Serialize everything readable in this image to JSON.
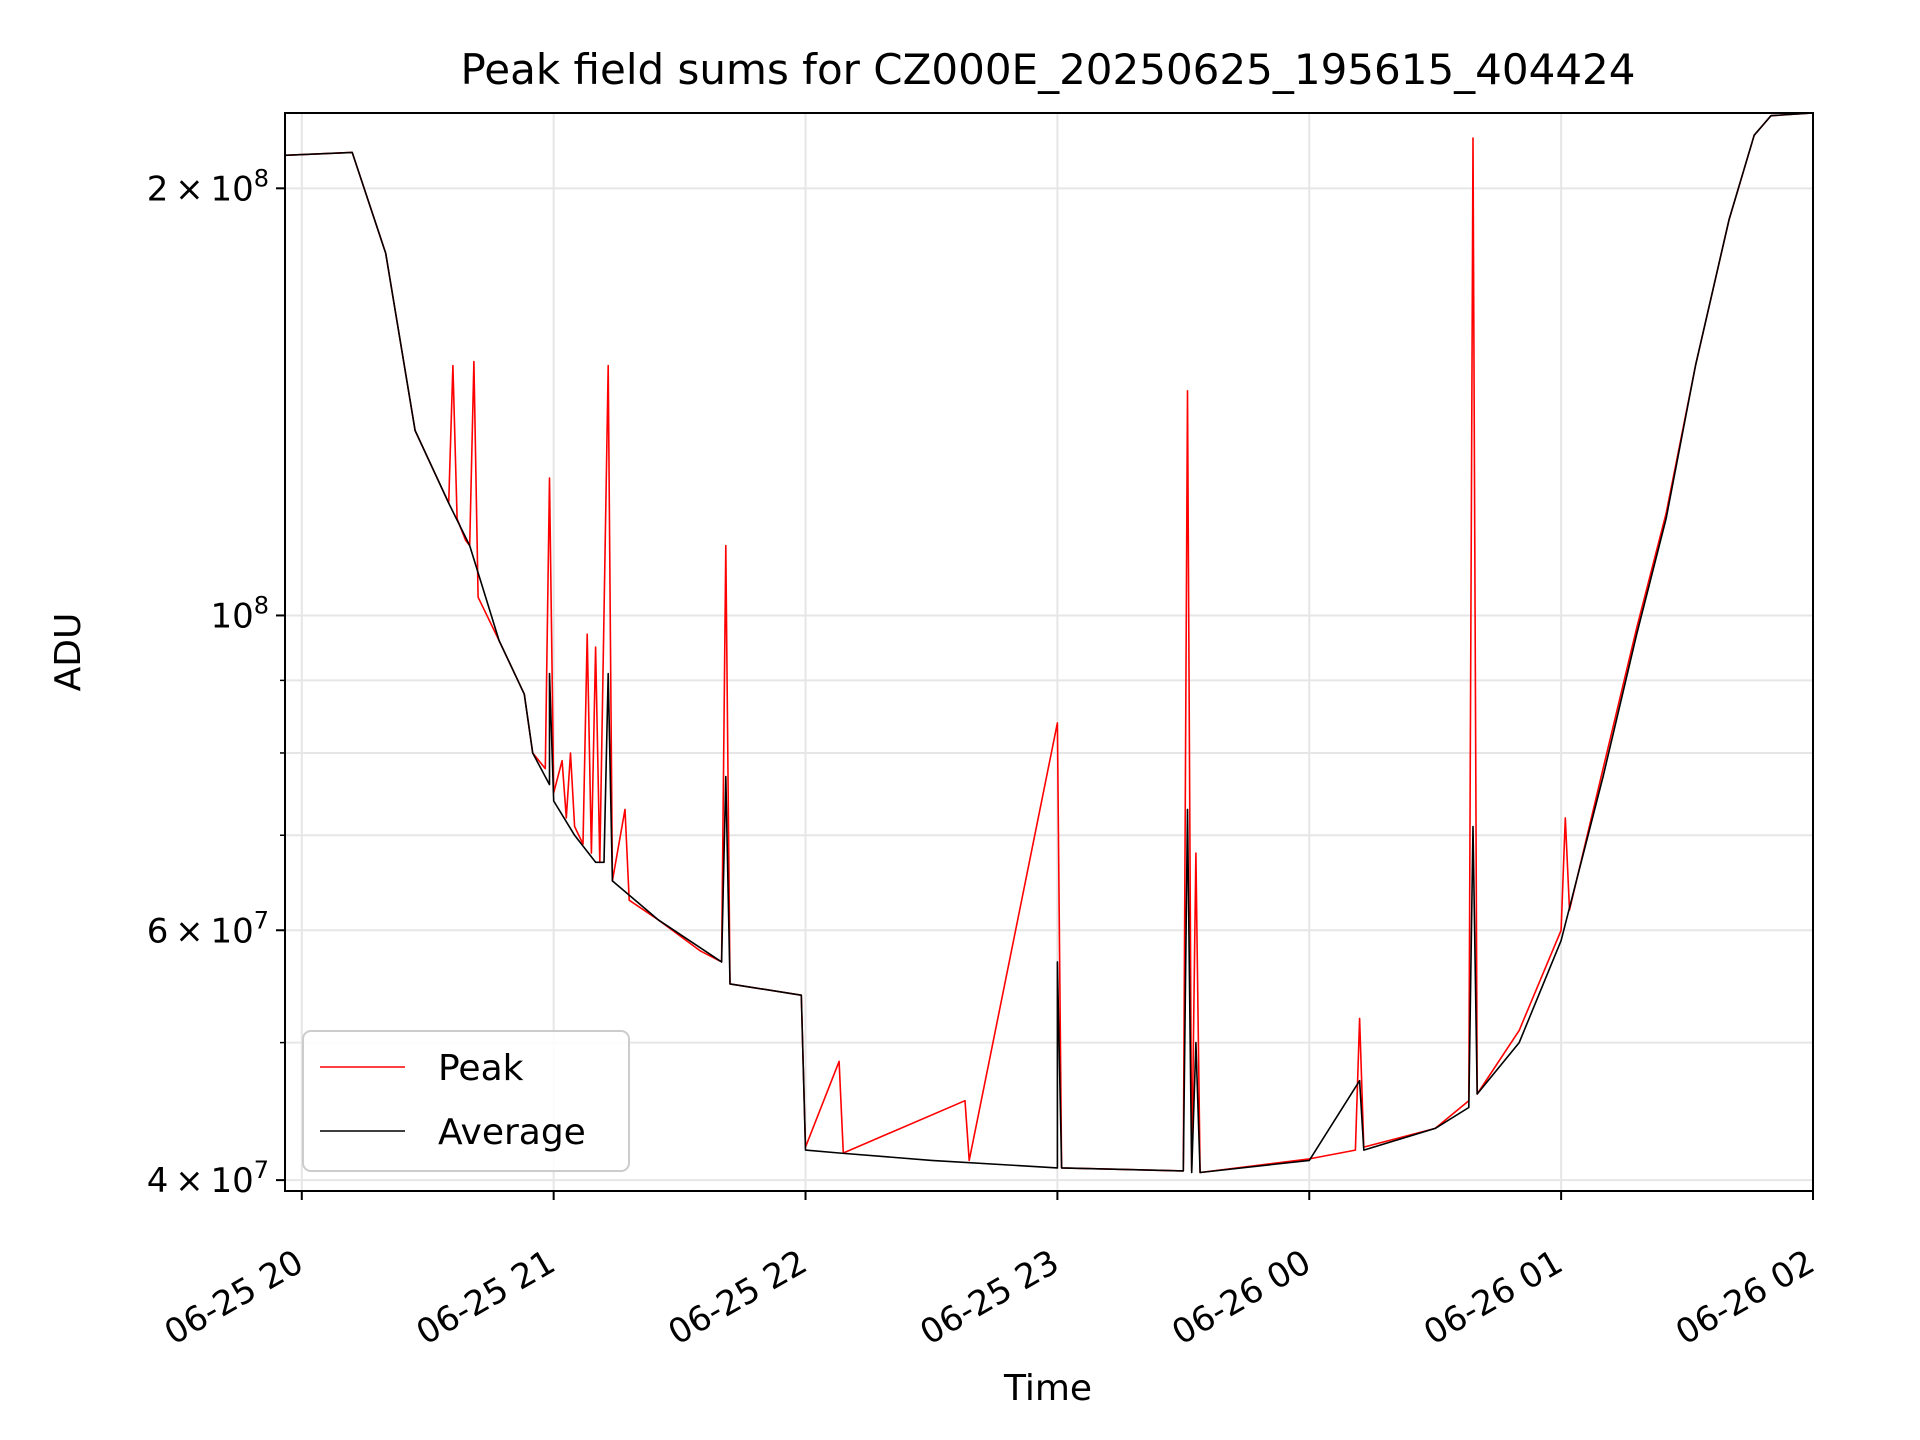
{
  "chart_data": {
    "type": "line",
    "title": "Peak field sums for CZ000E_20250625_195615_404424",
    "xlabel": "Time",
    "ylabel": "ADU",
    "yscale": "log",
    "grid": true,
    "legend_placement": "lower-left",
    "x_range": [
      "2025-06-25 19:56",
      "2025-06-26 02:00"
    ],
    "ylim": [
      39300000,
      226000000
    ],
    "x_ticks": [
      {
        "value": "2025-06-25 20:00",
        "label": "06-25 20"
      },
      {
        "value": "2025-06-25 21:00",
        "label": "06-25 21"
      },
      {
        "value": "2025-06-25 22:00",
        "label": "06-25 22"
      },
      {
        "value": "2025-06-25 23:00",
        "label": "06-25 23"
      },
      {
        "value": "2025-06-26 00:00",
        "label": "06-26 00"
      },
      {
        "value": "2025-06-26 01:00",
        "label": "06-26 01"
      },
      {
        "value": "2025-06-26 02:00",
        "label": "06-26 02"
      }
    ],
    "y_ticks_major": [
      {
        "value": 40000000,
        "base": "4",
        "exp": "7"
      },
      {
        "value": 60000000,
        "base": "6",
        "exp": "7"
      },
      {
        "value": 100000000,
        "base": "",
        "exp": "8"
      },
      {
        "value": 200000000,
        "base": "2",
        "exp": "8"
      }
    ],
    "y_ticks_minor": [
      50000000,
      70000000,
      80000000,
      90000000
    ],
    "series": [
      {
        "name": "Peak",
        "color": "#ff0000",
        "points": [
          [
            "2025-06-25 19:56",
            211000000
          ],
          [
            "2025-06-25 20:12",
            212000000
          ],
          [
            "2025-06-25 20:20",
            180000000
          ],
          [
            "2025-06-25 20:27",
            135000000
          ],
          [
            "2025-06-25 20:35",
            120000000
          ],
          [
            "2025-06-25 20:36",
            150000000
          ],
          [
            "2025-06-25 20:37",
            117000000
          ],
          [
            "2025-06-25 20:39",
            113000000
          ],
          [
            "2025-06-25 20:40",
            112000000
          ],
          [
            "2025-06-25 20:41",
            151000000
          ],
          [
            "2025-06-25 20:42",
            103000000
          ],
          [
            "2025-06-25 20:47",
            96000000
          ],
          [
            "2025-06-25 20:53",
            88000000
          ],
          [
            "2025-06-25 20:55",
            80000000
          ],
          [
            "2025-06-25 20:58",
            78000000
          ],
          [
            "2025-06-25 20:59",
            125000000
          ],
          [
            "2025-06-25 21:00",
            75000000
          ],
          [
            "2025-06-25 21:02",
            79000000
          ],
          [
            "2025-06-25 21:03",
            72000000
          ],
          [
            "2025-06-25 21:04",
            80000000
          ],
          [
            "2025-06-25 21:05",
            71000000
          ],
          [
            "2025-06-25 21:07",
            69000000
          ],
          [
            "2025-06-25 21:08",
            97000000
          ],
          [
            "2025-06-25 21:09",
            68000000
          ],
          [
            "2025-06-25 21:10",
            95000000
          ],
          [
            "2025-06-25 21:11",
            67000000
          ],
          [
            "2025-06-25 21:13",
            150000000
          ],
          [
            "2025-06-25 21:14",
            65000000
          ],
          [
            "2025-06-25 21:17",
            73000000
          ],
          [
            "2025-06-25 21:18",
            63000000
          ],
          [
            "2025-06-25 21:25",
            61000000
          ],
          [
            "2025-06-25 21:35",
            58000000
          ],
          [
            "2025-06-25 21:40",
            57000000
          ],
          [
            "2025-06-25 21:41",
            112000000
          ],
          [
            "2025-06-25 21:42",
            55000000
          ],
          [
            "2025-06-25 21:59",
            54000000
          ],
          [
            "2025-06-25 22:00",
            42200000
          ],
          [
            "2025-06-25 22:08",
            48500000
          ],
          [
            "2025-06-25 22:09",
            41800000
          ],
          [
            "2025-06-25 22:38",
            45500000
          ],
          [
            "2025-06-25 22:39",
            41300000
          ],
          [
            "2025-06-25 23:00",
            84000000
          ],
          [
            "2025-06-25 23:01",
            40800000
          ],
          [
            "2025-06-25 23:30",
            40600000
          ],
          [
            "2025-06-25 23:31",
            144000000
          ],
          [
            "2025-06-25 23:32",
            40600000
          ],
          [
            "2025-06-25 23:33",
            68000000
          ],
          [
            "2025-06-25 23:34",
            40500000
          ],
          [
            "2025-06-26 00:00",
            41400000
          ],
          [
            "2025-06-26 00:11",
            42000000
          ],
          [
            "2025-06-26 00:12",
            52000000
          ],
          [
            "2025-06-26 00:13",
            42200000
          ],
          [
            "2025-06-26 00:30",
            43500000
          ],
          [
            "2025-06-26 00:38",
            45500000
          ],
          [
            "2025-06-26 00:39",
            217000000
          ],
          [
            "2025-06-26 00:40",
            46000000
          ],
          [
            "2025-06-26 00:50",
            51000000
          ],
          [
            "2025-06-26 01:00",
            60000000
          ],
          [
            "2025-06-26 01:01",
            72000000
          ],
          [
            "2025-06-26 01:02",
            62000000
          ],
          [
            "2025-06-26 01:10",
            78000000
          ],
          [
            "2025-06-26 01:18",
            98000000
          ],
          [
            "2025-06-26 01:25",
            118000000
          ],
          [
            "2025-06-26 01:32",
            150000000
          ],
          [
            "2025-06-26 01:40",
            190000000
          ],
          [
            "2025-06-26 01:46",
            218000000
          ],
          [
            "2025-06-26 01:50",
            225000000
          ],
          [
            "2025-06-26 02:00",
            226000000
          ]
        ]
      },
      {
        "name": "Average",
        "color": "#000000",
        "points": [
          [
            "2025-06-25 19:56",
            211000000
          ],
          [
            "2025-06-25 20:12",
            212000000
          ],
          [
            "2025-06-25 20:20",
            180000000
          ],
          [
            "2025-06-25 20:27",
            135000000
          ],
          [
            "2025-06-25 20:35",
            120000000
          ],
          [
            "2025-06-25 20:40",
            112000000
          ],
          [
            "2025-06-25 20:47",
            96000000
          ],
          [
            "2025-06-25 20:53",
            88000000
          ],
          [
            "2025-06-25 20:55",
            80000000
          ],
          [
            "2025-06-25 20:59",
            76000000
          ],
          [
            "2025-06-25 20:59",
            91000000
          ],
          [
            "2025-06-25 21:00",
            74000000
          ],
          [
            "2025-06-25 21:05",
            70000000
          ],
          [
            "2025-06-25 21:10",
            67000000
          ],
          [
            "2025-06-25 21:12",
            67000000
          ],
          [
            "2025-06-25 21:13",
            91000000
          ],
          [
            "2025-06-25 21:14",
            65000000
          ],
          [
            "2025-06-25 21:25",
            61000000
          ],
          [
            "2025-06-25 21:40",
            57000000
          ],
          [
            "2025-06-25 21:41",
            77000000
          ],
          [
            "2025-06-25 21:42",
            55000000
          ],
          [
            "2025-06-25 21:59",
            54000000
          ],
          [
            "2025-06-25 22:00",
            42000000
          ],
          [
            "2025-06-25 22:08",
            41800000
          ],
          [
            "2025-06-25 22:30",
            41300000
          ],
          [
            "2025-06-25 23:00",
            40800000
          ],
          [
            "2025-06-25 23:00",
            57000000
          ],
          [
            "2025-06-25 23:01",
            40800000
          ],
          [
            "2025-06-25 23:30",
            40600000
          ],
          [
            "2025-06-25 23:31",
            73000000
          ],
          [
            "2025-06-25 23:32",
            40500000
          ],
          [
            "2025-06-25 23:33",
            50000000
          ],
          [
            "2025-06-25 23:34",
            40500000
          ],
          [
            "2025-06-26 00:00",
            41300000
          ],
          [
            "2025-06-26 00:12",
            47000000
          ],
          [
            "2025-06-26 00:13",
            42000000
          ],
          [
            "2025-06-26 00:30",
            43500000
          ],
          [
            "2025-06-26 00:38",
            45000000
          ],
          [
            "2025-06-26 00:39",
            71000000
          ],
          [
            "2025-06-26 00:40",
            46000000
          ],
          [
            "2025-06-26 00:50",
            50000000
          ],
          [
            "2025-06-26 01:00",
            59000000
          ],
          [
            "2025-06-26 01:10",
            77000000
          ],
          [
            "2025-06-26 01:18",
            97000000
          ],
          [
            "2025-06-26 01:25",
            117000000
          ],
          [
            "2025-06-26 01:32",
            150000000
          ],
          [
            "2025-06-26 01:40",
            190000000
          ],
          [
            "2025-06-26 01:46",
            218000000
          ],
          [
            "2025-06-26 01:50",
            225000000
          ],
          [
            "2025-06-26 02:00",
            226000000
          ]
        ]
      }
    ]
  }
}
